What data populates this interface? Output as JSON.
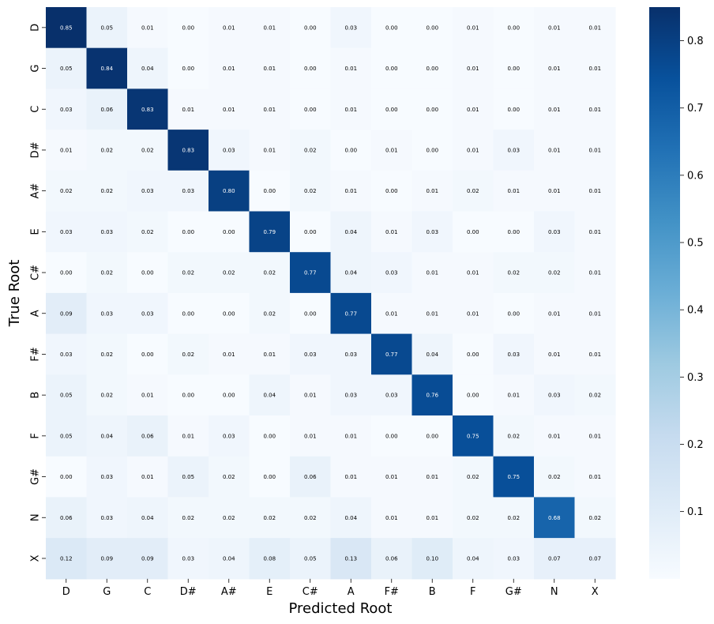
{
  "chart_data": {
    "type": "heatmap",
    "title": "",
    "xlabel": "Predicted Root",
    "ylabel": "True Root",
    "x_categories": [
      "D",
      "G",
      "C",
      "D#",
      "A#",
      "E",
      "C#",
      "A",
      "F#",
      "B",
      "F",
      "G#",
      "N",
      "X"
    ],
    "y_categories": [
      "D",
      "G",
      "C",
      "D#",
      "A#",
      "E",
      "C#",
      "A",
      "F#",
      "B",
      "F",
      "G#",
      "N",
      "X"
    ],
    "values": [
      [
        0.85,
        0.05,
        0.01,
        0.0,
        0.01,
        0.01,
        0.0,
        0.03,
        0.0,
        0.0,
        0.01,
        0.0,
        0.01,
        0.01
      ],
      [
        0.05,
        0.84,
        0.04,
        0.0,
        0.01,
        0.01,
        0.0,
        0.01,
        0.0,
        0.0,
        0.01,
        0.0,
        0.01,
        0.01
      ],
      [
        0.03,
        0.06,
        0.83,
        0.01,
        0.01,
        0.01,
        0.0,
        0.01,
        0.0,
        0.0,
        0.01,
        0.0,
        0.01,
        0.01
      ],
      [
        0.01,
        0.02,
        0.02,
        0.83,
        0.03,
        0.01,
        0.02,
        0.0,
        0.01,
        0.0,
        0.01,
        0.03,
        0.01,
        0.01
      ],
      [
        0.02,
        0.02,
        0.03,
        0.03,
        0.8,
        0.0,
        0.02,
        0.01,
        0.0,
        0.01,
        0.02,
        0.01,
        0.01,
        0.01
      ],
      [
        0.03,
        0.03,
        0.02,
        0.0,
        0.0,
        0.79,
        0.0,
        0.04,
        0.01,
        0.03,
        0.0,
        0.0,
        0.03,
        0.01
      ],
      [
        0.0,
        0.02,
        0.0,
        0.02,
        0.02,
        0.02,
        0.77,
        0.04,
        0.03,
        0.01,
        0.01,
        0.02,
        0.02,
        0.01
      ],
      [
        0.09,
        0.03,
        0.03,
        0.0,
        0.0,
        0.02,
        0.0,
        0.77,
        0.01,
        0.01,
        0.01,
        0.0,
        0.01,
        0.01
      ],
      [
        0.03,
        0.02,
        0.0,
        0.02,
        0.01,
        0.01,
        0.03,
        0.03,
        0.77,
        0.04,
        0.0,
        0.03,
        0.01,
        0.01
      ],
      [
        0.05,
        0.02,
        0.01,
        0.0,
        0.0,
        0.04,
        0.01,
        0.03,
        0.03,
        0.76,
        0.0,
        0.01,
        0.03,
        0.02
      ],
      [
        0.05,
        0.04,
        0.06,
        0.01,
        0.03,
        0.0,
        0.01,
        0.01,
        0.0,
        0.0,
        0.75,
        0.02,
        0.01,
        0.01
      ],
      [
        0.0,
        0.03,
        0.01,
        0.05,
        0.02,
        0.0,
        0.06,
        0.01,
        0.01,
        0.01,
        0.02,
        0.75,
        0.02,
        0.01
      ],
      [
        0.06,
        0.03,
        0.04,
        0.02,
        0.02,
        0.02,
        0.02,
        0.04,
        0.01,
        0.01,
        0.02,
        0.02,
        0.68,
        0.02
      ],
      [
        0.12,
        0.09,
        0.09,
        0.03,
        0.04,
        0.08,
        0.05,
        0.13,
        0.06,
        0.1,
        0.04,
        0.03,
        0.07,
        0.07
      ]
    ],
    "value_format": "0.00",
    "colormap": "Blues",
    "vmin": 0.0,
    "vmax": 0.85,
    "colorbar": {
      "ticks": [
        0.1,
        0.2,
        0.3,
        0.4,
        0.5,
        0.6,
        0.7,
        0.8
      ],
      "tick_labels": [
        "0.1",
        "0.2",
        "0.3",
        "0.4",
        "0.5",
        "0.6",
        "0.7",
        "0.8"
      ]
    },
    "grid": false,
    "legend": "colorbar-right",
    "colors": {
      "low": "#f7fbff",
      "high": "#08306b",
      "text_light": "#ffffff",
      "text_dark": "#000000"
    }
  }
}
